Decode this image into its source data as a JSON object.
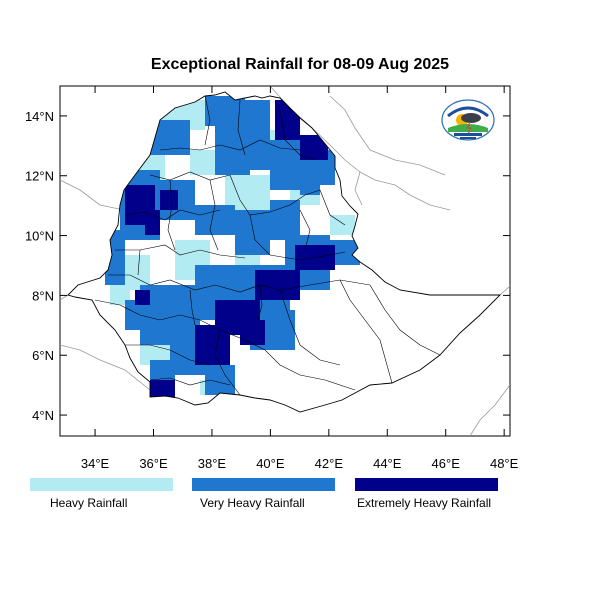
{
  "title": "Exceptional Rainfall for 08-09 Aug 2025",
  "axes": {
    "x_ticks": [
      {
        "value": 34,
        "label": "34°E"
      },
      {
        "value": 36,
        "label": "36°E"
      },
      {
        "value": 38,
        "label": "38°E"
      },
      {
        "value": 40,
        "label": "40°E"
      },
      {
        "value": 42,
        "label": "42°E"
      },
      {
        "value": 44,
        "label": "44°E"
      },
      {
        "value": 46,
        "label": "46°E"
      },
      {
        "value": 48,
        "label": "48°E"
      }
    ],
    "y_ticks": [
      {
        "value": 4,
        "label": "4°N"
      },
      {
        "value": 6,
        "label": "6°N"
      },
      {
        "value": 8,
        "label": "8°N"
      },
      {
        "value": 10,
        "label": "10°N"
      },
      {
        "value": 12,
        "label": "12°N"
      },
      {
        "value": 14,
        "label": "14°N"
      }
    ],
    "lon_range": [
      32.8,
      48.2
    ],
    "lat_range": [
      3.3,
      15.0
    ]
  },
  "legend": [
    {
      "label": "Heavy Rainfall",
      "color": "#b2ebf2"
    },
    {
      "label": "Very Heavy Rainfall",
      "color": "#1f77d0"
    },
    {
      "label": "Extremely Heavy Rainfall",
      "color": "#00008b"
    }
  ],
  "logo": {
    "icon": "meteorology-institute-logo"
  }
}
